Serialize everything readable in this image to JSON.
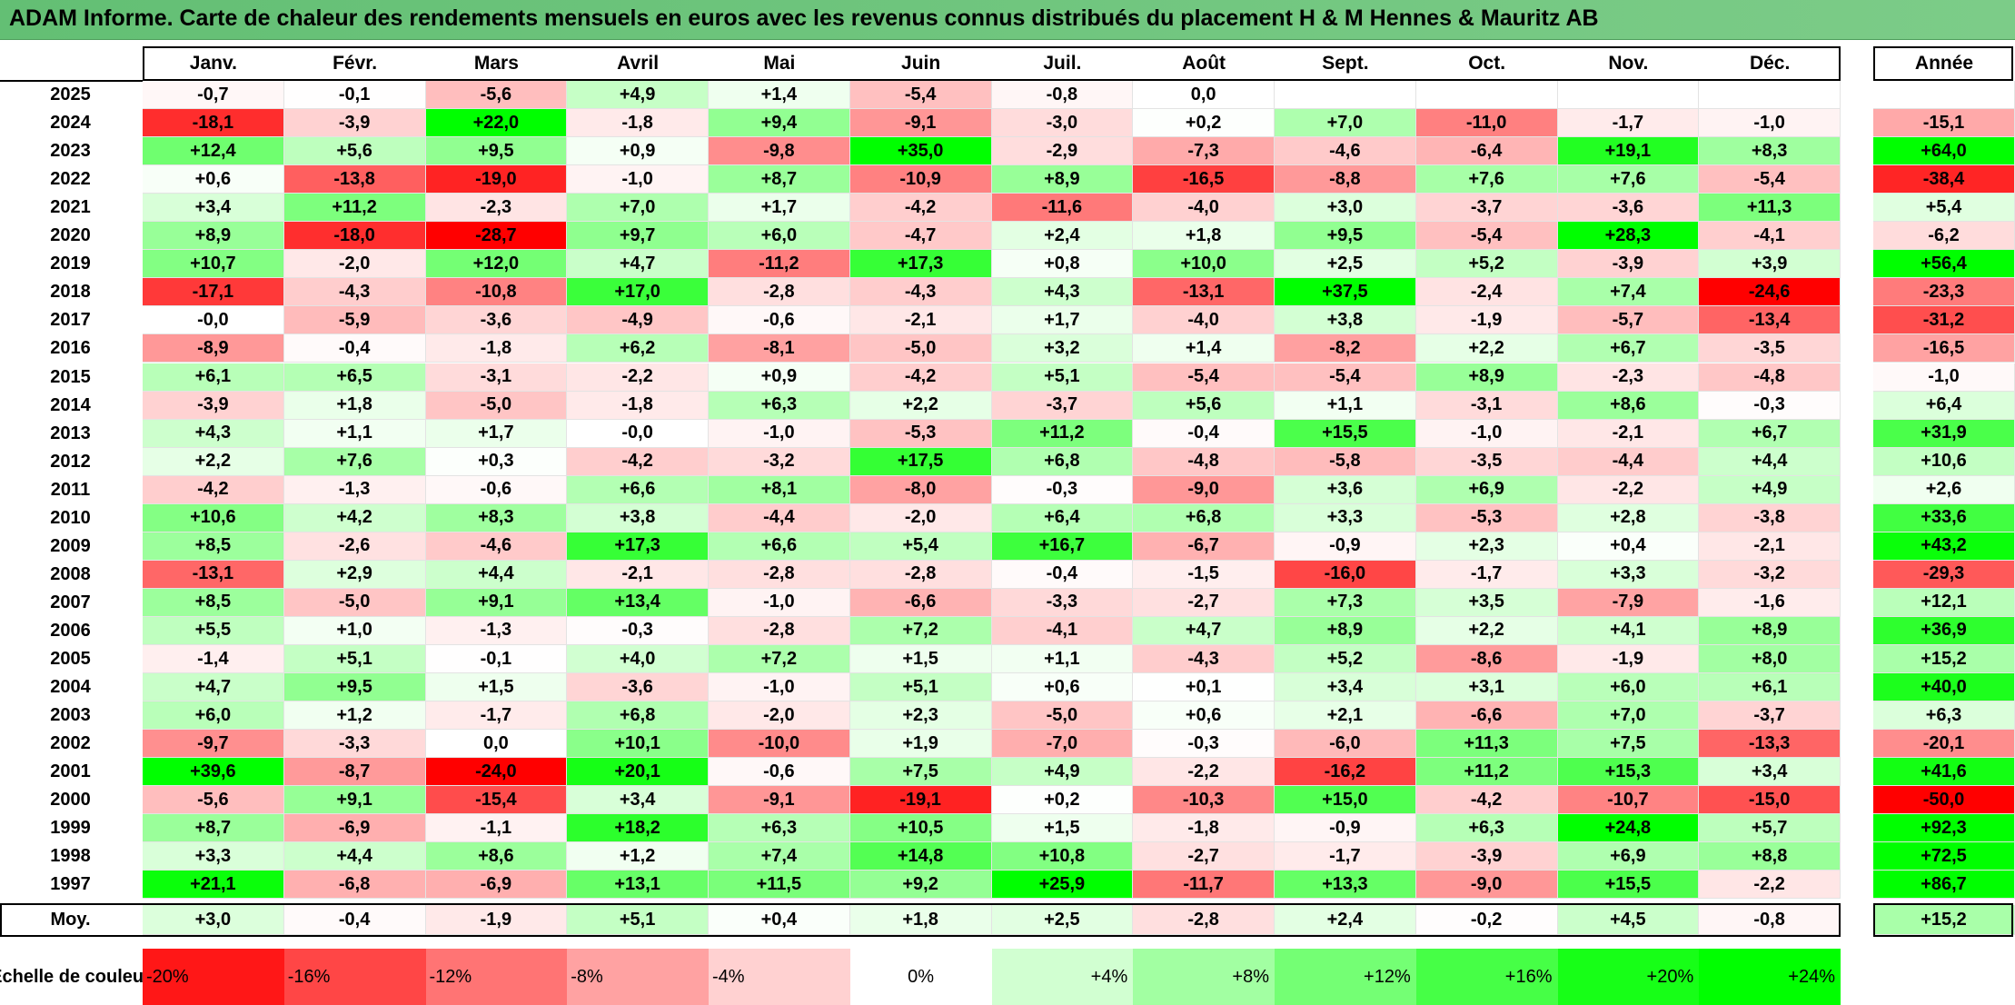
{
  "title": "ADAM Informe. Carte de chaleur des rendements mensuels en euros avec les revenus connus distribués du placement H & M Hennes & Mauritz AB",
  "months": [
    "Janv.",
    "Févr.",
    "Mars",
    "Avril",
    "Mai",
    "Juin",
    "Juil.",
    "Août",
    "Sept.",
    "Oct.",
    "Nov.",
    "Déc."
  ],
  "year_header": "Année",
  "rows": [
    {
      "year": "2025",
      "values": [
        "-0,7",
        "-0,1",
        "-5,6",
        "+4,9",
        "+1,4",
        "-5,4",
        "-0,8",
        "0,0",
        "",
        "",
        "",
        ""
      ],
      "annual": ""
    },
    {
      "year": "2024",
      "values": [
        "-18,1",
        "-3,9",
        "+22,0",
        "-1,8",
        "+9,4",
        "-9,1",
        "-3,0",
        "+0,2",
        "+7,0",
        "-11,0",
        "-1,7",
        "-1,0"
      ],
      "annual": "-15,1"
    },
    {
      "year": "2023",
      "values": [
        "+12,4",
        "+5,6",
        "+9,5",
        "+0,9",
        "-9,8",
        "+35,0",
        "-2,9",
        "-7,3",
        "-4,6",
        "-6,4",
        "+19,1",
        "+8,3"
      ],
      "annual": "+64,0"
    },
    {
      "year": "2022",
      "values": [
        "+0,6",
        "-13,8",
        "-19,0",
        "-1,0",
        "+8,7",
        "-10,9",
        "+8,9",
        "-16,5",
        "-8,8",
        "+7,6",
        "+7,6",
        "-5,4"
      ],
      "annual": "-38,4"
    },
    {
      "year": "2021",
      "values": [
        "+3,4",
        "+11,2",
        "-2,3",
        "+7,0",
        "+1,7",
        "-4,2",
        "-11,6",
        "-4,0",
        "+3,0",
        "-3,7",
        "-3,6",
        "+11,3"
      ],
      "annual": "+5,4"
    },
    {
      "year": "2020",
      "values": [
        "+8,9",
        "-18,0",
        "-28,7",
        "+9,7",
        "+6,0",
        "-4,7",
        "+2,4",
        "+1,8",
        "+9,5",
        "-5,4",
        "+28,3",
        "-4,1"
      ],
      "annual": "-6,2"
    },
    {
      "year": "2019",
      "values": [
        "+10,7",
        "-2,0",
        "+12,0",
        "+4,7",
        "-11,2",
        "+17,3",
        "+0,8",
        "+10,0",
        "+2,5",
        "+5,2",
        "-3,9",
        "+3,9"
      ],
      "annual": "+56,4"
    },
    {
      "year": "2018",
      "values": [
        "-17,1",
        "-4,3",
        "-10,8",
        "+17,0",
        "-2,8",
        "-4,3",
        "+4,3",
        "-13,1",
        "+37,5",
        "-2,4",
        "+7,4",
        "-24,6"
      ],
      "annual": "-23,3"
    },
    {
      "year": "2017",
      "values": [
        "-0,0",
        "-5,9",
        "-3,6",
        "-4,9",
        "-0,6",
        "-2,1",
        "+1,7",
        "-4,0",
        "+3,8",
        "-1,9",
        "-5,7",
        "-13,4"
      ],
      "annual": "-31,2"
    },
    {
      "year": "2016",
      "values": [
        "-8,9",
        "-0,4",
        "-1,8",
        "+6,2",
        "-8,1",
        "-5,0",
        "+3,2",
        "+1,4",
        "-8,2",
        "+2,2",
        "+6,7",
        "-3,5"
      ],
      "annual": "-16,5"
    },
    {
      "year": "2015",
      "values": [
        "+6,1",
        "+6,5",
        "-3,1",
        "-2,2",
        "+0,9",
        "-4,2",
        "+5,1",
        "-5,4",
        "-5,4",
        "+8,9",
        "-2,3",
        "-4,8"
      ],
      "annual": "-1,0"
    },
    {
      "year": "2014",
      "values": [
        "-3,9",
        "+1,8",
        "-5,0",
        "-1,8",
        "+6,3",
        "+2,2",
        "-3,7",
        "+5,6",
        "+1,1",
        "-3,1",
        "+8,6",
        "-0,3"
      ],
      "annual": "+6,4"
    },
    {
      "year": "2013",
      "values": [
        "+4,3",
        "+1,1",
        "+1,7",
        "-0,0",
        "-1,0",
        "-5,3",
        "+11,2",
        "-0,4",
        "+15,5",
        "-1,0",
        "-2,1",
        "+6,7"
      ],
      "annual": "+31,9"
    },
    {
      "year": "2012",
      "values": [
        "+2,2",
        "+7,6",
        "+0,3",
        "-4,2",
        "-3,2",
        "+17,5",
        "+6,8",
        "-4,8",
        "-5,8",
        "-3,5",
        "-4,4",
        "+4,4"
      ],
      "annual": "+10,6"
    },
    {
      "year": "2011",
      "values": [
        "-4,2",
        "-1,3",
        "-0,6",
        "+6,6",
        "+8,1",
        "-8,0",
        "-0,3",
        "-9,0",
        "+3,6",
        "+6,9",
        "-2,2",
        "+4,9"
      ],
      "annual": "+2,6"
    },
    {
      "year": "2010",
      "values": [
        "+10,6",
        "+4,2",
        "+8,3",
        "+3,8",
        "-4,4",
        "-2,0",
        "+6,4",
        "+6,8",
        "+3,3",
        "-5,3",
        "+2,8",
        "-3,8"
      ],
      "annual": "+33,6"
    },
    {
      "year": "2009",
      "values": [
        "+8,5",
        "-2,6",
        "-4,6",
        "+17,3",
        "+6,6",
        "+5,4",
        "+16,7",
        "-6,7",
        "-0,9",
        "+2,3",
        "+0,4",
        "-2,1"
      ],
      "annual": "+43,2"
    },
    {
      "year": "2008",
      "values": [
        "-13,1",
        "+2,9",
        "+4,4",
        "-2,1",
        "-2,8",
        "-2,8",
        "-0,4",
        "-1,5",
        "-16,0",
        "-1,7",
        "+3,3",
        "-3,2"
      ],
      "annual": "-29,3"
    },
    {
      "year": "2007",
      "values": [
        "+8,5",
        "-5,0",
        "+9,1",
        "+13,4",
        "-1,0",
        "-6,6",
        "-3,3",
        "-2,7",
        "+7,3",
        "+3,5",
        "-7,9",
        "-1,6"
      ],
      "annual": "+12,1"
    },
    {
      "year": "2006",
      "values": [
        "+5,5",
        "+1,0",
        "-1,3",
        "-0,3",
        "-2,8",
        "+7,2",
        "-4,1",
        "+4,7",
        "+8,9",
        "+2,2",
        "+4,1",
        "+8,9"
      ],
      "annual": "+36,9"
    },
    {
      "year": "2005",
      "values": [
        "-1,4",
        "+5,1",
        "-0,1",
        "+4,0",
        "+7,2",
        "+1,5",
        "+1,1",
        "-4,3",
        "+5,2",
        "-8,6",
        "-1,9",
        "+8,0"
      ],
      "annual": "+15,2"
    },
    {
      "year": "2004",
      "values": [
        "+4,7",
        "+9,5",
        "+1,5",
        "-3,6",
        "-1,0",
        "+5,1",
        "+0,6",
        "+0,1",
        "+3,4",
        "+3,1",
        "+6,0",
        "+6,1"
      ],
      "annual": "+40,0"
    },
    {
      "year": "2003",
      "values": [
        "+6,0",
        "+1,2",
        "-1,7",
        "+6,8",
        "-2,0",
        "+2,3",
        "-5,0",
        "+0,6",
        "+2,1",
        "-6,6",
        "+7,0",
        "-3,7"
      ],
      "annual": "+6,3"
    },
    {
      "year": "2002",
      "values": [
        "-9,7",
        "-3,3",
        "0,0",
        "+10,1",
        "-10,0",
        "+1,9",
        "-7,0",
        "-0,3",
        "-6,0",
        "+11,3",
        "+7,5",
        "-13,3"
      ],
      "annual": "-20,1"
    },
    {
      "year": "2001",
      "values": [
        "+39,6",
        "-8,7",
        "-24,0",
        "+20,1",
        "-0,6",
        "+7,5",
        "+4,9",
        "-2,2",
        "-16,2",
        "+11,2",
        "+15,3",
        "+3,4"
      ],
      "annual": "+41,6"
    },
    {
      "year": "2000",
      "values": [
        "-5,6",
        "+9,1",
        "-15,4",
        "+3,4",
        "-9,1",
        "-19,1",
        "+0,2",
        "-10,3",
        "+15,0",
        "-4,2",
        "-10,7",
        "-15,0"
      ],
      "annual": "-50,0"
    },
    {
      "year": "1999",
      "values": [
        "+8,7",
        "-6,9",
        "-1,1",
        "+18,2",
        "+6,3",
        "+10,5",
        "+1,5",
        "-1,8",
        "-0,9",
        "+6,3",
        "+24,8",
        "+5,7"
      ],
      "annual": "+92,3"
    },
    {
      "year": "1998",
      "values": [
        "+3,3",
        "+4,4",
        "+8,6",
        "+1,2",
        "+7,4",
        "+14,8",
        "+10,8",
        "-2,7",
        "-1,7",
        "-3,9",
        "+6,9",
        "+8,8"
      ],
      "annual": "+72,5"
    },
    {
      "year": "1997",
      "values": [
        "+21,1",
        "-6,8",
        "-6,9",
        "+13,1",
        "+11,5",
        "+9,2",
        "+25,9",
        "-11,7",
        "+13,3",
        "-9,0",
        "+15,5",
        "-2,2"
      ],
      "annual": "+86,7"
    }
  ],
  "average": {
    "label": "Moy.",
    "values": [
      "+3,0",
      "-0,4",
      "-1,9",
      "+5,1",
      "+0,4",
      "+1,8",
      "+2,5",
      "-2,8",
      "+2,4",
      "-0,2",
      "+4,5",
      "-0,8"
    ],
    "annual": "+15,2"
  },
  "scale": {
    "label": "Echelle de couleur",
    "steps": [
      "-20%",
      "-16%",
      "-12%",
      "-8%",
      "-4%",
      "0%",
      "+4%",
      "+8%",
      "+12%",
      "+16%",
      "+20%",
      "+24%"
    ]
  },
  "colors": {
    "title_bg": "#63bf74",
    "red": "#ff0000",
    "white": "#ffffff",
    "green": "#00ff00"
  }
}
